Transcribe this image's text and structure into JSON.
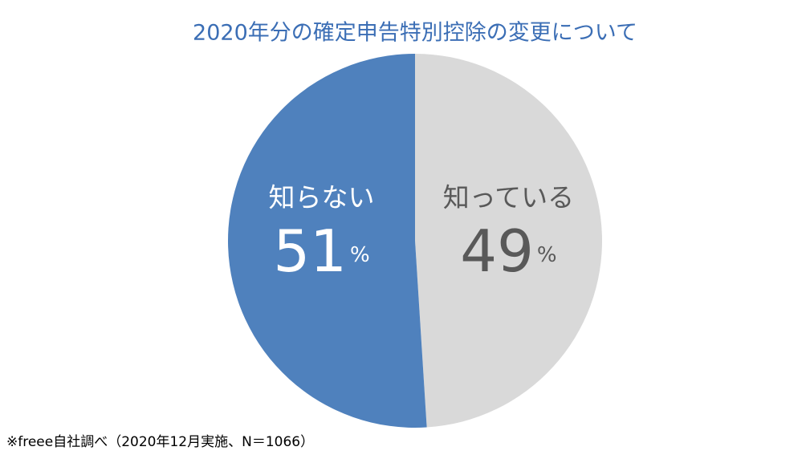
{
  "chart_data": {
    "type": "pie",
    "title": "2020年分の確定申告特別控除の変更について",
    "categories": [
      "知っている",
      "知らない"
    ],
    "values": [
      49,
      51
    ],
    "colors": [
      "#d9d9d9",
      "#4f81bd"
    ],
    "label_colors": [
      "#595959",
      "#ffffff"
    ],
    "value_unit": "%",
    "title_color": "#3b6eb5",
    "footnote": "※freee自社調べ（2020年12月実施、N＝1066）"
  }
}
